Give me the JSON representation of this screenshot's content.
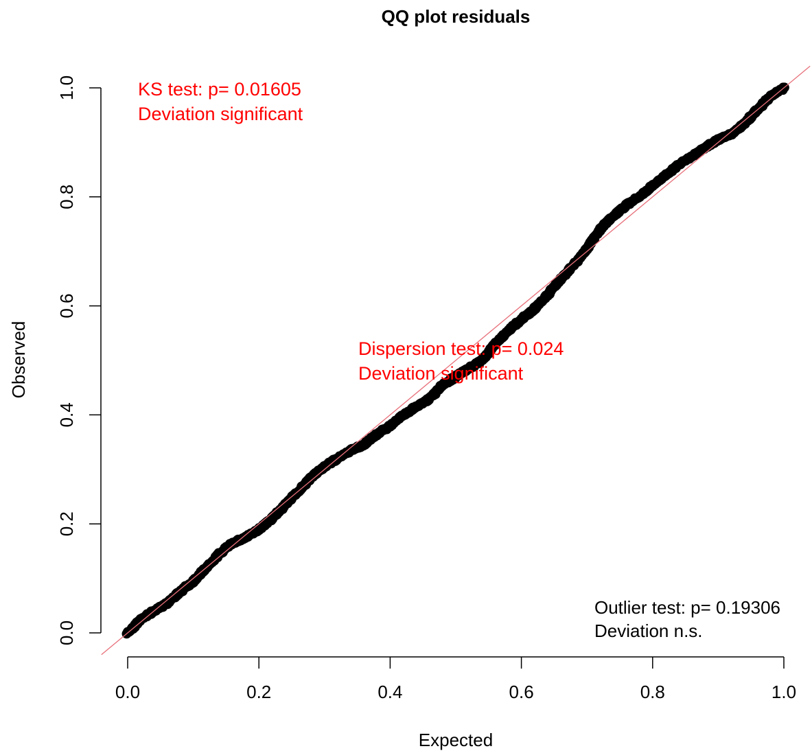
{
  "chart_data": {
    "type": "scatter",
    "title": "QQ plot residuals",
    "xlabel": "Expected",
    "ylabel": "Observed",
    "xlim": [
      0,
      1
    ],
    "ylim": [
      0,
      1
    ],
    "xticks": [
      "0.0",
      "0.2",
      "0.4",
      "0.6",
      "0.8",
      "1.0"
    ],
    "yticks": [
      "0.0",
      "0.2",
      "0.4",
      "0.6",
      "0.8",
      "1.0"
    ],
    "grid": false,
    "reference_line": {
      "slope": 1,
      "intercept": 0,
      "color": "#e8707a"
    },
    "point_color": "#000000",
    "series_points": {
      "x": [
        0.0,
        0.01,
        0.02,
        0.04,
        0.06,
        0.08,
        0.1,
        0.12,
        0.14,
        0.16,
        0.18,
        0.2,
        0.22,
        0.24,
        0.26,
        0.28,
        0.3,
        0.32,
        0.34,
        0.36,
        0.38,
        0.4,
        0.42,
        0.44,
        0.46,
        0.48,
        0.5,
        0.52,
        0.54,
        0.56,
        0.58,
        0.6,
        0.62,
        0.64,
        0.66,
        0.68,
        0.7,
        0.72,
        0.74,
        0.76,
        0.78,
        0.8,
        0.82,
        0.84,
        0.86,
        0.88,
        0.9,
        0.92,
        0.94,
        0.96,
        0.98,
        1.0
      ],
      "y": [
        0.0,
        0.012,
        0.025,
        0.04,
        0.055,
        0.075,
        0.095,
        0.12,
        0.145,
        0.165,
        0.175,
        0.19,
        0.21,
        0.235,
        0.26,
        0.285,
        0.305,
        0.32,
        0.335,
        0.345,
        0.365,
        0.38,
        0.4,
        0.415,
        0.43,
        0.455,
        0.47,
        0.485,
        0.5,
        0.53,
        0.555,
        0.575,
        0.595,
        0.62,
        0.65,
        0.675,
        0.705,
        0.74,
        0.765,
        0.785,
        0.8,
        0.82,
        0.84,
        0.86,
        0.875,
        0.89,
        0.905,
        0.915,
        0.935,
        0.96,
        0.985,
        1.0
      ]
    },
    "annotations": {
      "ks_line1": "KS test: p= 0.01605",
      "ks_line2": "Deviation  significant",
      "disp_line1": "Dispersion test: p= 0.024",
      "disp_line2": "Deviation  significant",
      "outlier_line1": "Outlier test: p= 0.19306",
      "outlier_line2": "Deviation  n.s."
    }
  }
}
